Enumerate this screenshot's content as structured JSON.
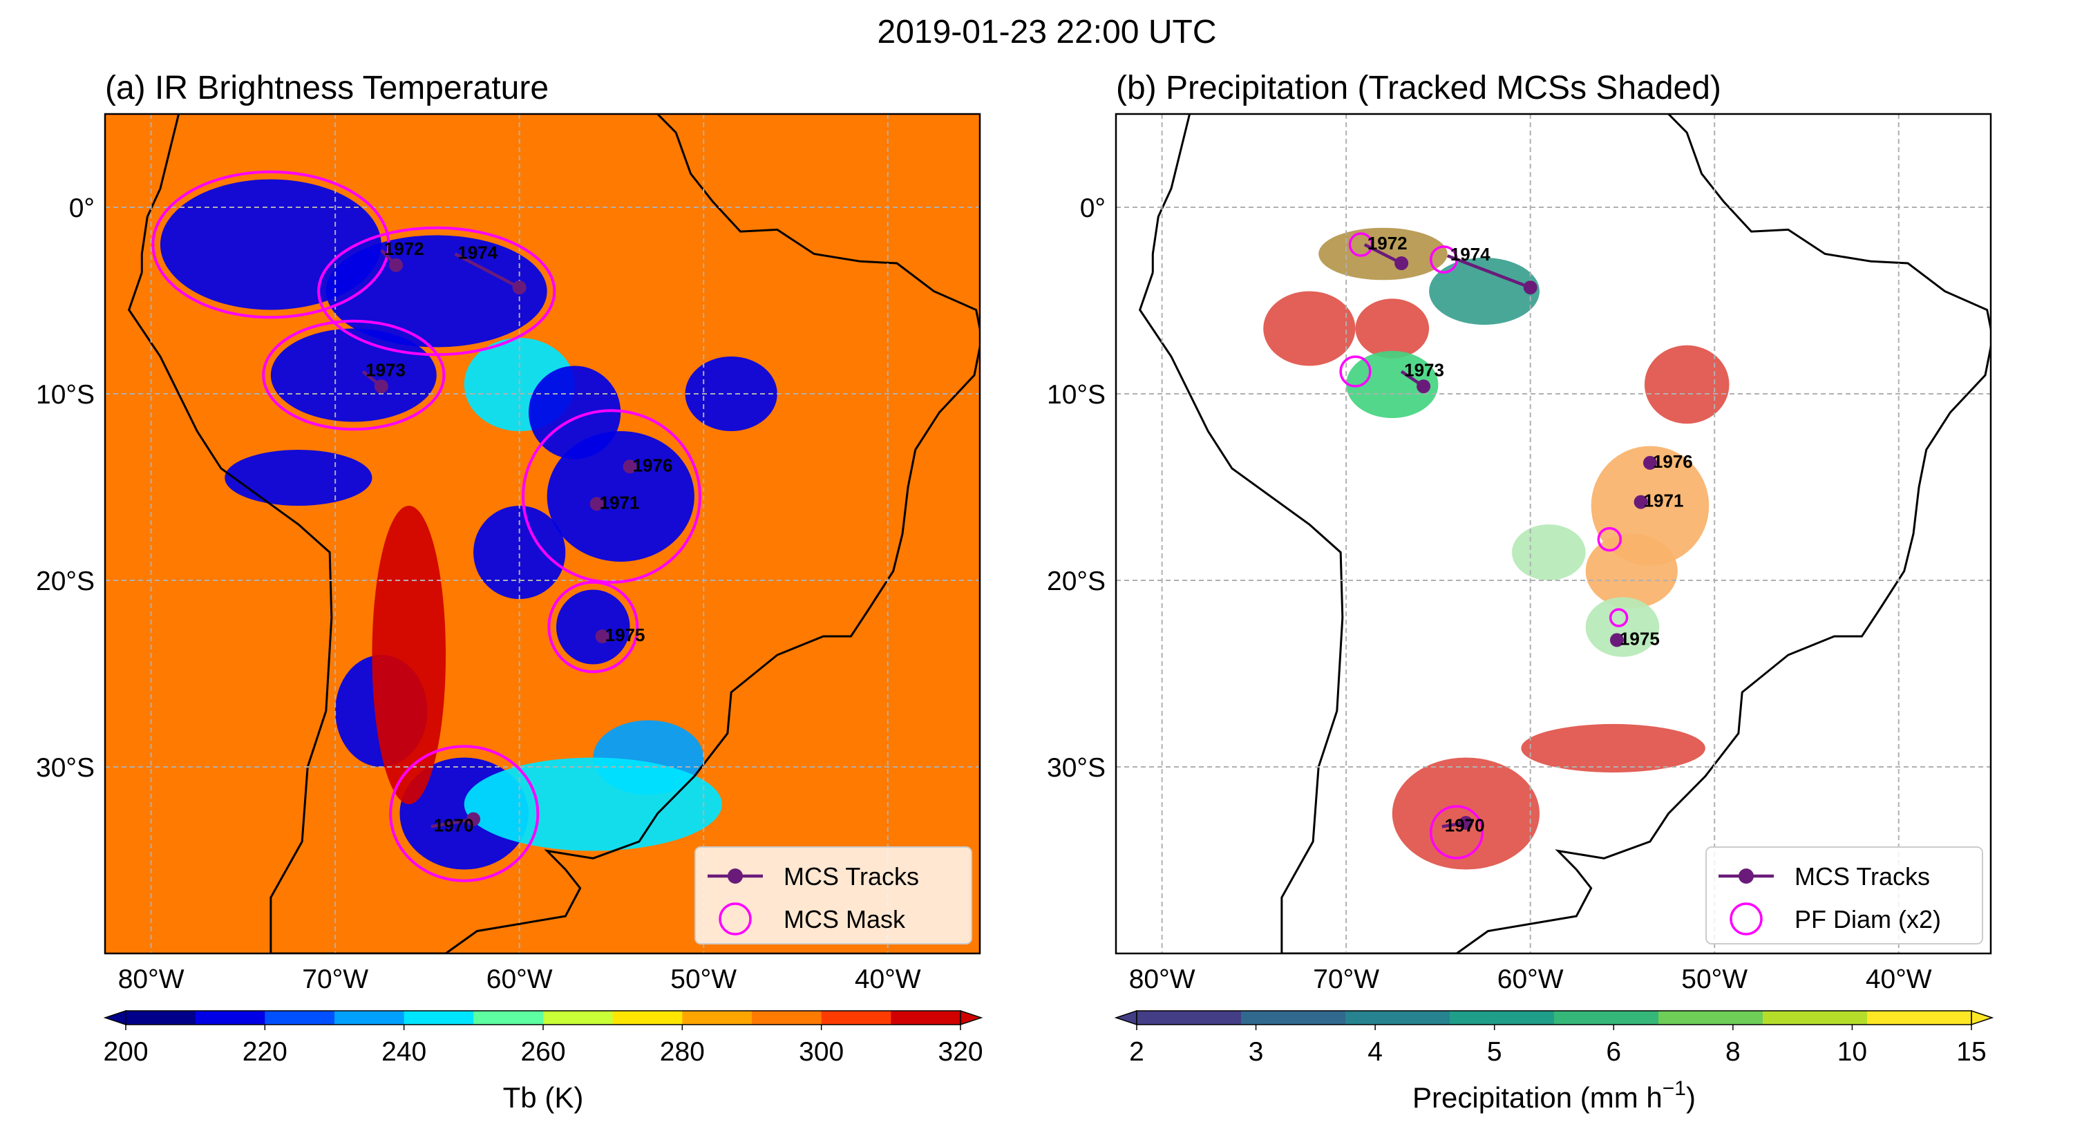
{
  "figure": {
    "suptitle": "2019-01-23 22:00 UTC"
  },
  "chart_data": [
    {
      "type": "heatmap",
      "title": "(a) IR Brightness Temperature",
      "xlabel": "",
      "ylabel": "",
      "xlim": [
        -82.5,
        -35
      ],
      "ylim": [
        -40,
        5
      ],
      "grid": true,
      "x_ticks": [
        -80,
        -70,
        -60,
        -50,
        -40
      ],
      "x_tick_labels": [
        "80°W",
        "70°W",
        "60°W",
        "50°W",
        "40°W"
      ],
      "y_ticks": [
        0,
        -10,
        -20,
        -30
      ],
      "y_tick_labels": [
        "0°",
        "10°S",
        "20°S",
        "30°S"
      ],
      "background_color": "#ff7a00",
      "colorbar": {
        "label": "Tb (K)",
        "ticks": [
          200,
          220,
          240,
          260,
          280,
          300,
          320
        ],
        "tick_labels": [
          "200",
          "220",
          "240",
          "260",
          "280",
          "300",
          "320"
        ],
        "range": [
          200,
          320
        ],
        "colors": [
          "#00008b",
          "#0000e6",
          "#0050ff",
          "#00a0ff",
          "#00e5ff",
          "#5dffa0",
          "#c8ff37",
          "#ffe600",
          "#ffa500",
          "#ff7a00",
          "#ff3c00",
          "#d00000"
        ]
      },
      "features": [
        {
          "lon": -73.5,
          "lat": -2,
          "rx": 6,
          "ry": 3.5,
          "color": "#0000e6"
        },
        {
          "lon": -64.5,
          "lat": -4.5,
          "rx": 6,
          "ry": 3,
          "color": "#0000e6"
        },
        {
          "lon": -69,
          "lat": -9,
          "rx": 4.5,
          "ry": 2.5,
          "color": "#0000e6"
        },
        {
          "lon": -60,
          "lat": -9.5,
          "rx": 3,
          "ry": 2.5,
          "color": "#00e5ff"
        },
        {
          "lon": -54.5,
          "lat": -15.5,
          "rx": 4,
          "ry": 3.5,
          "color": "#0000e6"
        },
        {
          "lon": -57,
          "lat": -11,
          "rx": 2.5,
          "ry": 2.5,
          "color": "#0000e6"
        },
        {
          "lon": -60,
          "lat": -18.5,
          "rx": 2.5,
          "ry": 2.5,
          "color": "#0000e6"
        },
        {
          "lon": -56,
          "lat": -22.5,
          "rx": 2,
          "ry": 2,
          "color": "#0000e6"
        },
        {
          "lon": -48.5,
          "lat": -10,
          "rx": 2.5,
          "ry": 2,
          "color": "#0000e6"
        },
        {
          "lon": -72,
          "lat": -14.5,
          "rx": 4,
          "ry": 1.5,
          "color": "#0000e6"
        },
        {
          "lon": -67.5,
          "lat": -27,
          "rx": 2.5,
          "ry": 3,
          "color": "#0000e6"
        },
        {
          "lon": -63,
          "lat": -32.5,
          "rx": 3.5,
          "ry": 3,
          "color": "#0000e6"
        },
        {
          "lon": -53,
          "lat": -29.5,
          "rx": 3,
          "ry": 2,
          "color": "#00a0ff"
        },
        {
          "lon": -56,
          "lat": -32,
          "rx": 7,
          "ry": 2.5,
          "color": "#00e5ff"
        },
        {
          "lon": -66,
          "lat": -24,
          "rx": 2,
          "ry": 8,
          "color": "#d00000"
        }
      ],
      "tracks": [
        {
          "id": "1972",
          "lon": [
            -67.5,
            -66.7
          ],
          "lat": [
            -2.3,
            -3.1
          ]
        },
        {
          "id": "1974",
          "lon": [
            -63.5,
            -60.0
          ],
          "lat": [
            -2.5,
            -4.3
          ]
        },
        {
          "id": "1973",
          "lon": [
            -68.5,
            -67.5
          ],
          "lat": [
            -8.8,
            -9.6
          ]
        },
        {
          "id": "1976",
          "lon": [
            -54.0
          ],
          "lat": [
            -13.9
          ]
        },
        {
          "id": "1971",
          "lon": [
            -55.8
          ],
          "lat": [
            -15.9
          ]
        },
        {
          "id": "1975",
          "lon": [
            -55.5
          ],
          "lat": [
            -23.0
          ]
        },
        {
          "id": "1970",
          "lon": [
            -64.8,
            -62.5
          ],
          "lat": [
            -33.2,
            -32.8
          ]
        }
      ],
      "masks": [
        {
          "lon": -73.5,
          "lat": -2,
          "rx": 6.4,
          "ry": 3.9
        },
        {
          "lon": -64.5,
          "lat": -4.5,
          "rx": 6.4,
          "ry": 3.4
        },
        {
          "lon": -69,
          "lat": -9,
          "rx": 4.9,
          "ry": 2.9
        },
        {
          "lon": -55,
          "lat": -15.5,
          "rx": 4.8,
          "ry": 4.6
        },
        {
          "lon": -56,
          "lat": -22.5,
          "rx": 2.4,
          "ry": 2.4
        },
        {
          "lon": -63,
          "lat": -32.5,
          "rx": 4,
          "ry": 3.6
        }
      ],
      "legend": {
        "location": "lower right",
        "entries": [
          {
            "label": "MCS Tracks",
            "kind": "track"
          },
          {
            "label": "MCS Mask",
            "kind": "circle"
          }
        ]
      }
    },
    {
      "type": "heatmap",
      "title": "(b) Precipitation (Tracked MCSs Shaded)",
      "xlabel": "",
      "ylabel": "",
      "xlim": [
        -82.5,
        -35
      ],
      "ylim": [
        -40,
        5
      ],
      "grid": true,
      "x_ticks": [
        -80,
        -70,
        -60,
        -50,
        -40
      ],
      "x_tick_labels": [
        "80°W",
        "70°W",
        "60°W",
        "50°W",
        "40°W"
      ],
      "y_ticks": [
        0,
        -10,
        -20,
        -30
      ],
      "y_tick_labels": [
        "0°",
        "10°S",
        "20°S",
        "30°S"
      ],
      "background_color": "#ffffff",
      "colorbar": {
        "label_main": "Precipitation (mm h",
        "label_exp": "−1",
        "label_close": ")",
        "ticks": [
          2,
          3,
          4,
          5,
          6,
          8,
          10,
          15
        ],
        "tick_labels": [
          "2",
          "3",
          "4",
          "5",
          "6",
          "8",
          "10",
          "15"
        ],
        "colors": [
          "#433e85",
          "#31688e",
          "#26838f",
          "#1f9e89",
          "#35b779",
          "#6ece58",
          "#b5de2b",
          "#fde725"
        ]
      },
      "features": [
        {
          "lon": -68,
          "lat": -2.5,
          "rx": 3.5,
          "ry": 1.4,
          "color": "#b5964c"
        },
        {
          "lon": -62.5,
          "lat": -4.5,
          "rx": 3,
          "ry": 1.8,
          "color": "#3aa08f"
        },
        {
          "lon": -72,
          "lat": -6.5,
          "rx": 2.5,
          "ry": 2,
          "color": "#df5349"
        },
        {
          "lon": -67.5,
          "lat": -6.5,
          "rx": 2,
          "ry": 1.6,
          "color": "#df5349"
        },
        {
          "lon": -67.5,
          "lat": -9.5,
          "rx": 2.5,
          "ry": 1.8,
          "color": "#44d480"
        },
        {
          "lon": -51.5,
          "lat": -9.5,
          "rx": 2.3,
          "ry": 2.1,
          "color": "#df5349"
        },
        {
          "lon": -53.5,
          "lat": -16,
          "rx": 3.2,
          "ry": 3.2,
          "color": "#f8b26a"
        },
        {
          "lon": -54.5,
          "lat": -19.5,
          "rx": 2.5,
          "ry": 2,
          "color": "#f8b26a"
        },
        {
          "lon": -59,
          "lat": -18.5,
          "rx": 2,
          "ry": 1.5,
          "color": "#b6e9b7"
        },
        {
          "lon": -55,
          "lat": -22.5,
          "rx": 2,
          "ry": 1.6,
          "color": "#b6e9b7"
        },
        {
          "lon": -63.5,
          "lat": -32.5,
          "rx": 4,
          "ry": 3,
          "color": "#df5349"
        },
        {
          "lon": -55.5,
          "lat": -29,
          "rx": 5,
          "ry": 1.3,
          "color": "#df5349"
        }
      ],
      "tracks": [
        {
          "id": "1972",
          "lon": [
            -69.0,
            -67.0
          ],
          "lat": [
            -2.0,
            -3.0
          ]
        },
        {
          "id": "1974",
          "lon": [
            -64.5,
            -60.0
          ],
          "lat": [
            -2.6,
            -4.3
          ]
        },
        {
          "id": "1973",
          "lon": [
            -67.0,
            -65.8
          ],
          "lat": [
            -8.8,
            -9.6
          ]
        },
        {
          "id": "1976",
          "lon": [
            -53.5
          ],
          "lat": [
            -13.7
          ]
        },
        {
          "id": "1971",
          "lon": [
            -54.0
          ],
          "lat": [
            -15.8
          ]
        },
        {
          "id": "1975",
          "lon": [
            -55.3
          ],
          "lat": [
            -23.2
          ]
        },
        {
          "id": "1970",
          "lon": [
            -64.8,
            -63.5
          ],
          "lat": [
            -33.2,
            -33.0
          ]
        }
      ],
      "pf_circles": [
        {
          "lon": -69.2,
          "lat": -2.0,
          "r": 0.6
        },
        {
          "lon": -64.7,
          "lat": -2.8,
          "r": 0.7
        },
        {
          "lon": -69.5,
          "lat": -8.8,
          "r": 0.8
        },
        {
          "lon": -55.7,
          "lat": -17.8,
          "r": 0.6
        },
        {
          "lon": -55.2,
          "lat": -22.0,
          "r": 0.45
        },
        {
          "lon": -64.0,
          "lat": -33.5,
          "r": 1.4
        }
      ],
      "legend": {
        "location": "lower right",
        "entries": [
          {
            "label": "MCS Tracks",
            "kind": "track"
          },
          {
            "label": "PF Diam (x2)",
            "kind": "circle"
          }
        ]
      }
    }
  ],
  "colors": {
    "track": "#6a1b7a",
    "mask": "#ff00ff",
    "coast": "#000000",
    "grid": "#b0b0b0"
  }
}
